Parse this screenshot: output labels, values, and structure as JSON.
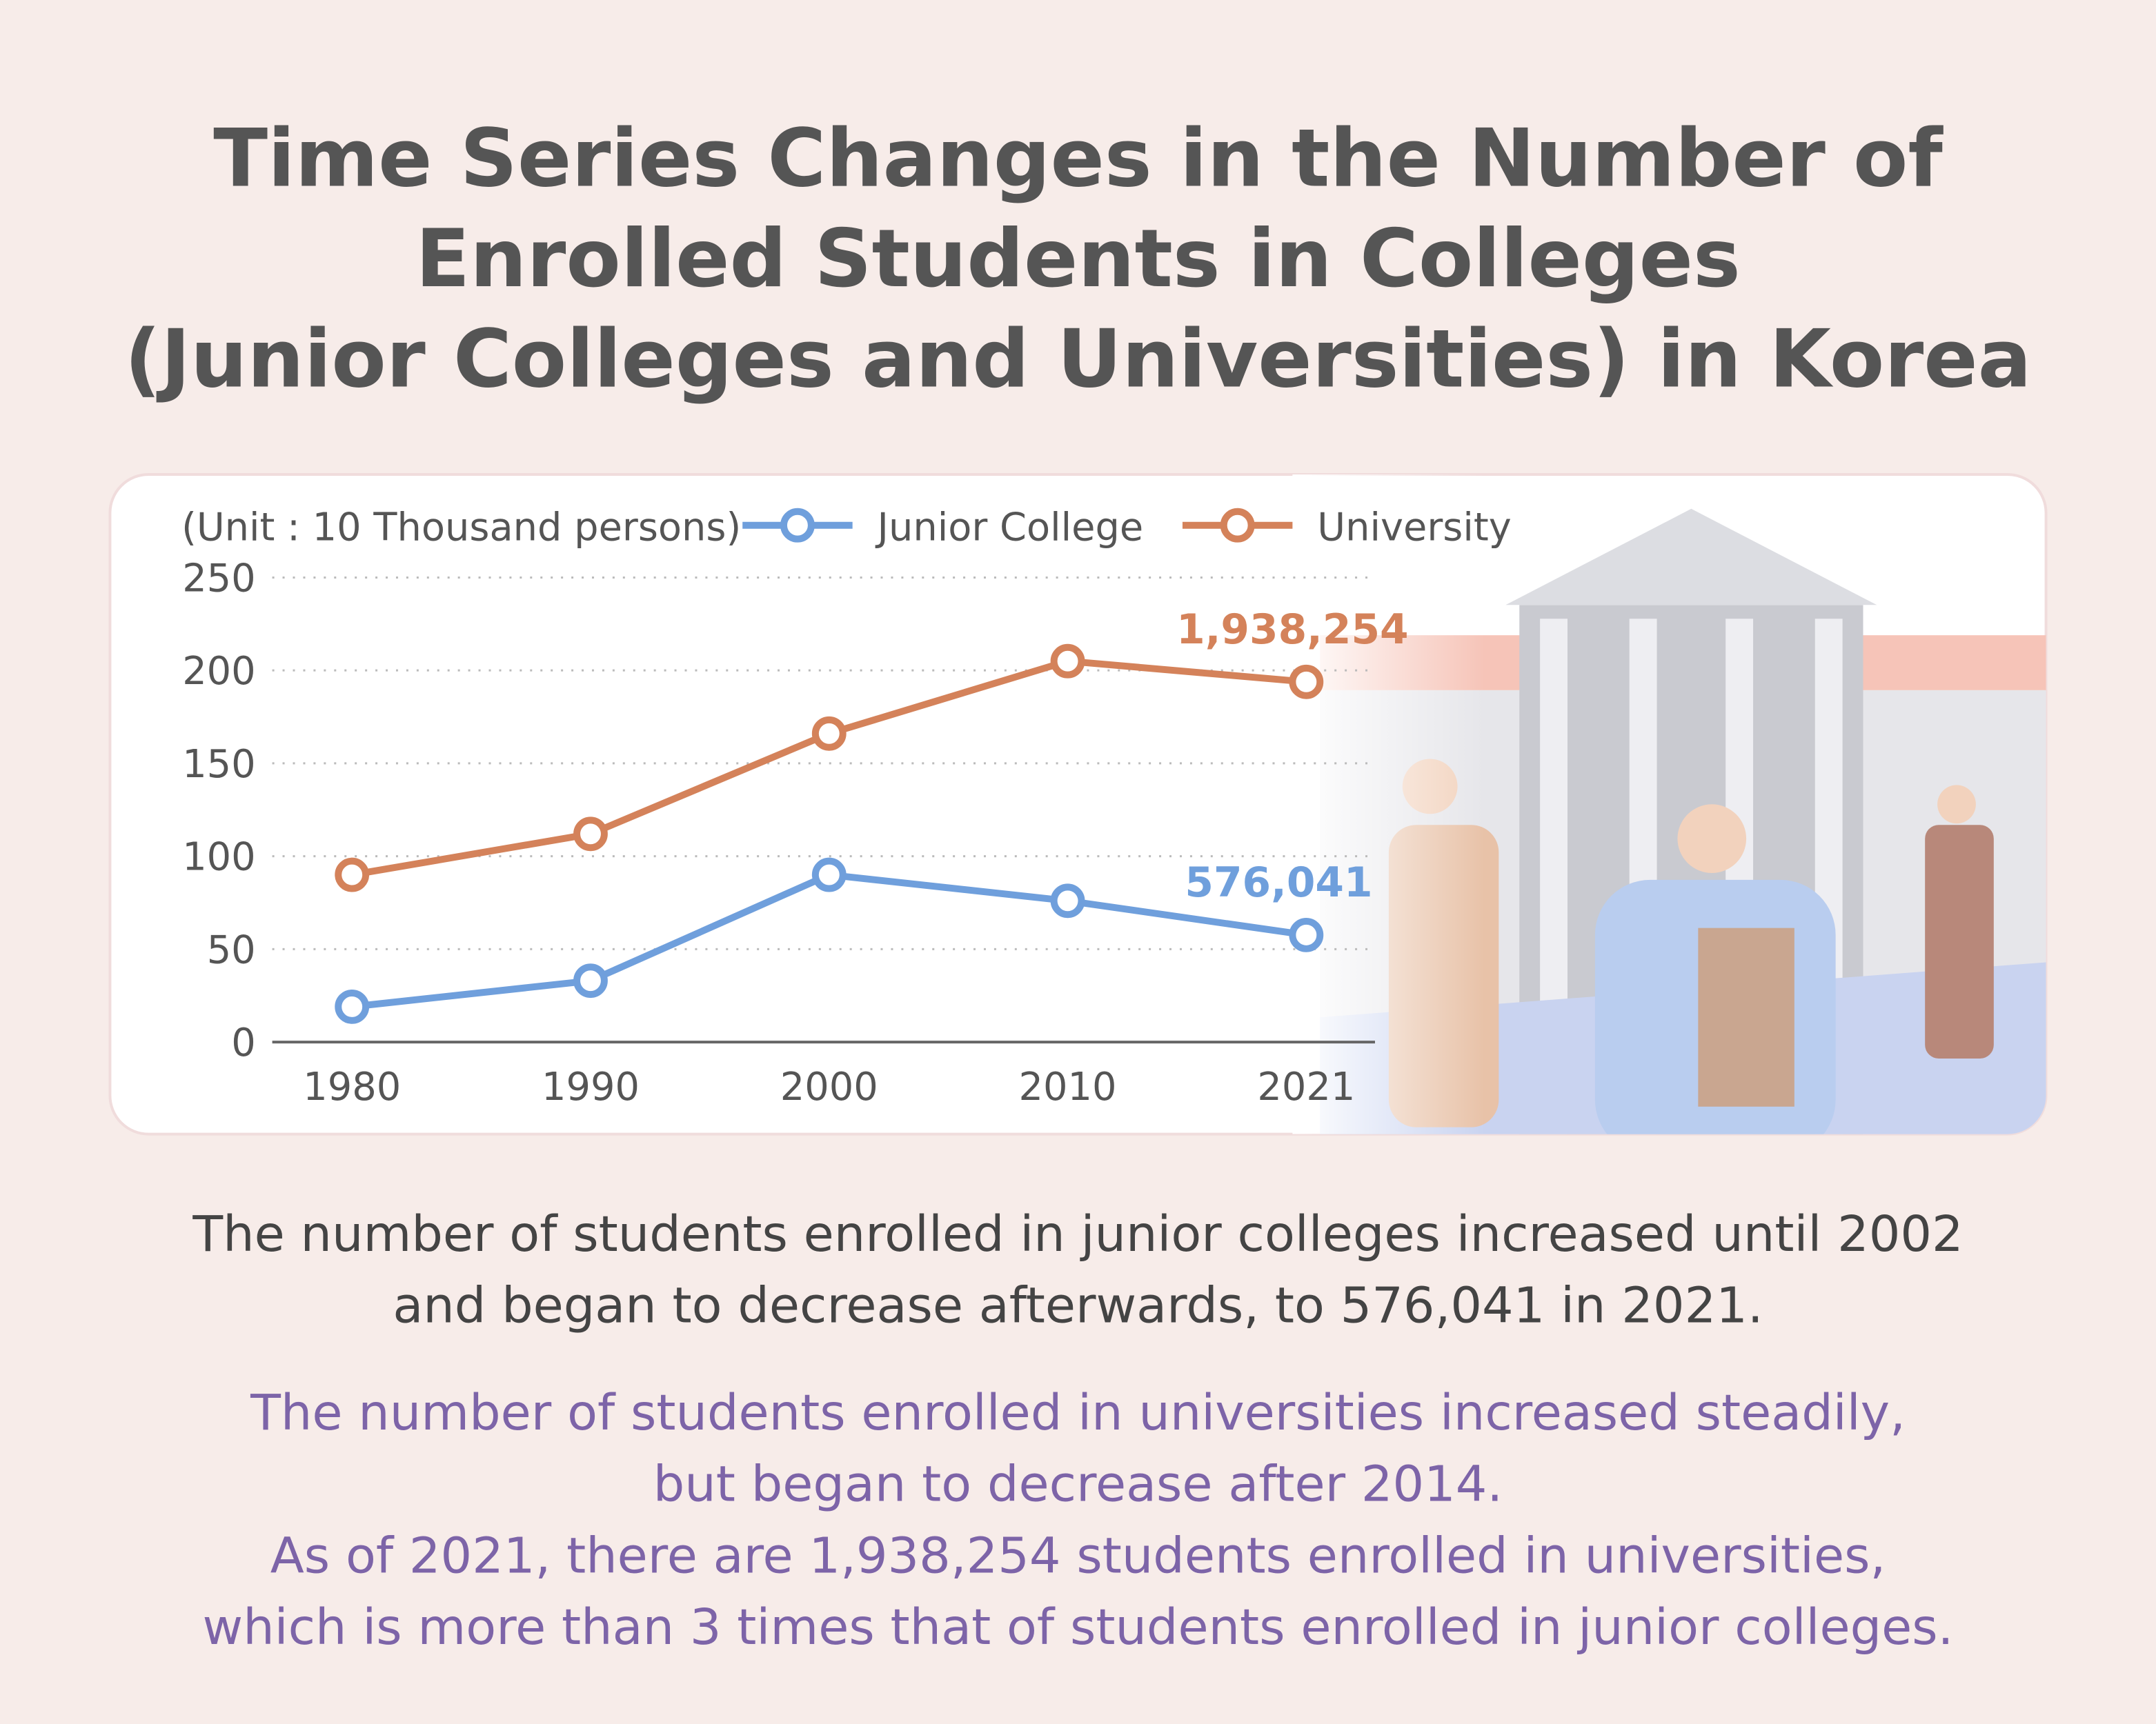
{
  "chart_data": {
    "type": "line",
    "title": [
      "Time Series Changes in the Number of",
      "Enrolled Students in Colleges",
      "(Junior Colleges and Universities) in Korea"
    ],
    "y_label": "(Unit : 10 Thousand persons)",
    "categories": [
      "1980",
      "1990",
      "2000",
      "2010",
      "2021"
    ],
    "series": [
      {
        "name": "Junior College",
        "color": "#6f9fdc",
        "values": [
          19,
          33,
          90,
          76,
          57.6041
        ],
        "value_labels": [
          null,
          null,
          null,
          null,
          "576,041"
        ]
      },
      {
        "name": "University",
        "color": "#d4825a",
        "values": [
          90,
          112,
          166,
          205,
          193.8254
        ],
        "value_labels": [
          null,
          null,
          null,
          null,
          "1,938,254"
        ]
      }
    ],
    "ylim": [
      0,
      250
    ],
    "yticks": [
      0,
      50,
      100,
      150,
      200,
      250
    ],
    "grid": true
  },
  "description": [
    [
      "The number of students enrolled in junior colleges increased until 2002",
      "and began to decrease afterwards, to 576,041 in 2021."
    ],
    [
      "The number of students enrolled in universities increased steadily,",
      "but began to decrease after 2014.",
      "As of 2021, there are 1,938,254 students enrolled in universities,",
      "which is more than 3 times that of students enrolled in junior colleges."
    ]
  ]
}
